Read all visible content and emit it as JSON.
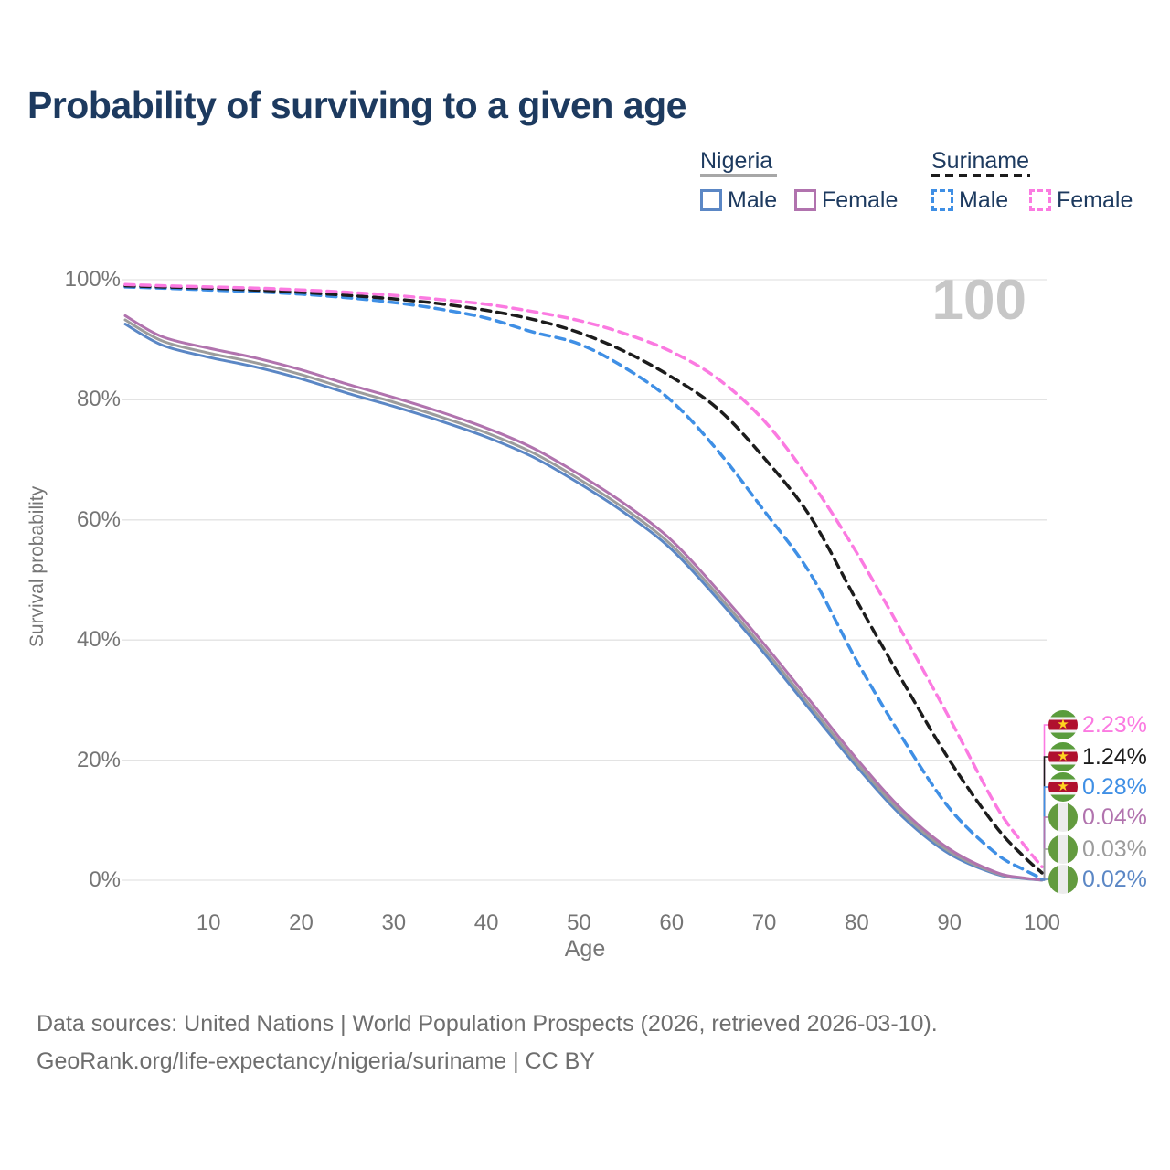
{
  "title": "Probability of surviving to a given age",
  "legend": {
    "nigeria": {
      "name": "Nigeria",
      "male_label": "Male",
      "female_label": "Female"
    },
    "suriname": {
      "name": "Suriname",
      "male_label": "Male",
      "female_label": "Female"
    }
  },
  "watermark_age": "100",
  "axis": {
    "y_title": "Survival probability",
    "x_title": "Age",
    "y_ticks": [
      {
        "label": "100%",
        "value": 100
      },
      {
        "label": "80%",
        "value": 80
      },
      {
        "label": "60%",
        "value": 60
      },
      {
        "label": "40%",
        "value": 40
      },
      {
        "label": "20%",
        "value": 20
      },
      {
        "label": "0%",
        "value": 0
      }
    ],
    "x_ticks": [
      {
        "label": "10",
        "value": 10
      },
      {
        "label": "20",
        "value": 20
      },
      {
        "label": "30",
        "value": 30
      },
      {
        "label": "40",
        "value": 40
      },
      {
        "label": "50",
        "value": 50
      },
      {
        "label": "60",
        "value": 60
      },
      {
        "label": "70",
        "value": 70
      },
      {
        "label": "80",
        "value": 80
      },
      {
        "label": "90",
        "value": 90
      },
      {
        "label": "100",
        "value": 100
      }
    ]
  },
  "chart_data": {
    "type": "line",
    "title": "Probability of surviving to a given age",
    "xlabel": "Age",
    "ylabel": "Survival probability",
    "x_range": [
      1,
      100
    ],
    "y_range_pct": [
      0,
      100
    ],
    "grid": "horizontal",
    "legend_position": "top-right",
    "hovered_age": 100,
    "ages": [
      1,
      5,
      10,
      15,
      20,
      25,
      30,
      35,
      40,
      45,
      50,
      55,
      60,
      65,
      70,
      75,
      80,
      85,
      90,
      95,
      98,
      100
    ],
    "series": [
      {
        "id": "nigeria-male",
        "country": "Nigeria",
        "group": "Male",
        "style": "solid",
        "color": "#5b87c5",
        "end_label": "0.02%",
        "values": [
          92.6,
          89.1,
          87.1,
          85.5,
          83.5,
          81.1,
          78.9,
          76.5,
          73.8,
          70.5,
          66.1,
          61.1,
          55.1,
          46.8,
          37.8,
          28.3,
          18.9,
          10.5,
          4.4,
          1.05,
          0.3,
          0.02
        ]
      },
      {
        "id": "nigeria-both",
        "country": "Nigeria",
        "group": "Both sexes",
        "style": "solid",
        "color": "#9c9c9c",
        "end_label": "0.03%",
        "values": [
          93.3,
          89.8,
          87.8,
          86.2,
          84.2,
          81.8,
          79.6,
          77.2,
          74.5,
          71.2,
          66.8,
          61.8,
          55.8,
          47.5,
          38.5,
          29.0,
          19.5,
          11.0,
          4.8,
          1.2,
          0.35,
          0.03
        ]
      },
      {
        "id": "nigeria-female",
        "country": "Nigeria",
        "group": "Female",
        "style": "solid",
        "color": "#b173ae",
        "end_label": "0.04%",
        "values": [
          94.0,
          90.5,
          88.6,
          87.0,
          85.0,
          82.6,
          80.4,
          78.0,
          75.3,
          72.0,
          67.6,
          62.6,
          56.6,
          48.3,
          39.3,
          29.8,
          20.2,
          11.6,
          5.2,
          1.35,
          0.4,
          0.04
        ]
      },
      {
        "id": "suriname-male",
        "country": "Suriname",
        "group": "Male",
        "style": "dashed",
        "color": "#3f8fe5",
        "end_label": "0.28%",
        "values": [
          98.8,
          98.6,
          98.3,
          98.0,
          97.6,
          97.0,
          96.2,
          95.1,
          93.6,
          91.3,
          89.3,
          85.3,
          79.8,
          71.5,
          61.5,
          51.0,
          36.5,
          23.5,
          12.0,
          4.5,
          1.8,
          0.28
        ]
      },
      {
        "id": "suriname-both",
        "country": "Suriname",
        "group": "Both sexes",
        "style": "dashed",
        "color": "#1c1c1c",
        "end_label": "1.24%",
        "values": [
          99.0,
          98.8,
          98.6,
          98.3,
          97.9,
          97.4,
          96.8,
          96.0,
          94.9,
          93.4,
          91.2,
          88.0,
          83.8,
          78.5,
          70.3,
          60.5,
          46.5,
          33.0,
          20.0,
          9.0,
          4.0,
          1.24
        ]
      },
      {
        "id": "suriname-female",
        "country": "Suriname",
        "group": "Female",
        "style": "dashed",
        "color": "#fb7ae1",
        "end_label": "2.23%",
        "values": [
          99.2,
          99.0,
          98.8,
          98.6,
          98.3,
          97.9,
          97.4,
          96.7,
          95.9,
          94.7,
          93.2,
          91.0,
          88.0,
          83.5,
          76.5,
          66.5,
          54.5,
          41.0,
          27.0,
          12.5,
          6.0,
          2.23
        ]
      }
    ]
  },
  "value_labels": [
    {
      "series": "suriname-female",
      "flag": "suriname",
      "text": "2.23%",
      "color": "#fb7ae1"
    },
    {
      "series": "suriname-both",
      "flag": "suriname",
      "text": "1.24%",
      "color": "#1c1c1c"
    },
    {
      "series": "suriname-male",
      "flag": "suriname",
      "text": "0.28%",
      "color": "#3f8fe5"
    },
    {
      "series": "nigeria-female",
      "flag": "nigeria",
      "text": "0.04%",
      "color": "#b173ae"
    },
    {
      "series": "nigeria-both",
      "flag": "nigeria",
      "text": "0.03%",
      "color": "#9c9c9c"
    },
    {
      "series": "nigeria-male",
      "flag": "nigeria",
      "text": "0.02%",
      "color": "#5b87c5"
    }
  ],
  "footer": {
    "line1": "Data sources: United Nations | World Population Prospects (2026, retrieved 2026-03-10).",
    "line2": "GeoRank.org/life-expectancy/nigeria/suriname | CC BY"
  }
}
